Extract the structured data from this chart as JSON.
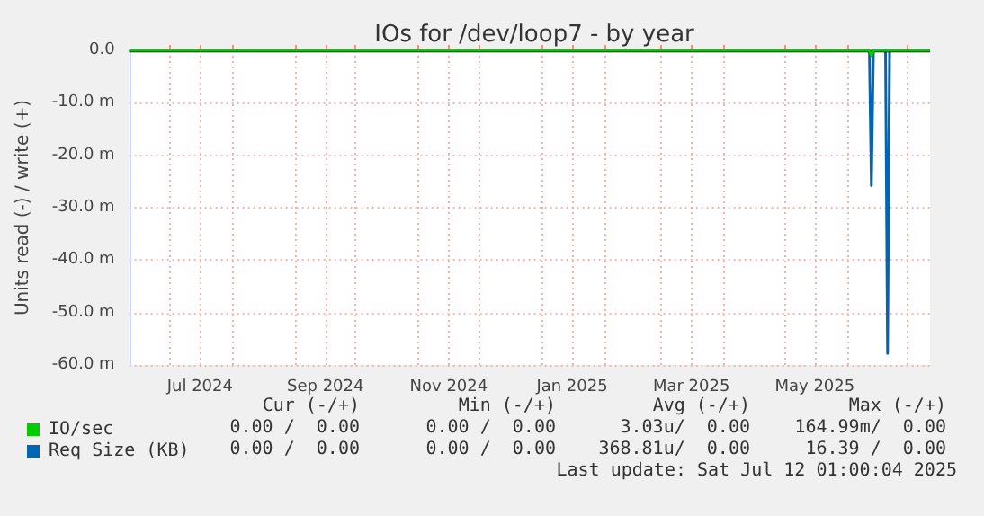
{
  "chart_data": {
    "type": "line",
    "title": "IOs for /dev/loop7 - by year",
    "ylabel": "Units read (-) / write (+)",
    "xlim": [
      "2024-06-11",
      "2025-07-12"
    ],
    "xticks": [
      {
        "value": "2024-07-01",
        "label": null
      },
      {
        "value": "2024-07-16",
        "label": "Jul 2024"
      },
      {
        "value": "2024-08-01",
        "label": null
      },
      {
        "value": "2024-09-01",
        "label": null
      },
      {
        "value": "2024-09-16",
        "label": "Sep 2024"
      },
      {
        "value": "2024-10-01",
        "label": null
      },
      {
        "value": "2024-11-01",
        "label": null
      },
      {
        "value": "2024-11-16",
        "label": "Nov 2024"
      },
      {
        "value": "2024-12-01",
        "label": null
      },
      {
        "value": "2025-01-01",
        "label": null
      },
      {
        "value": "2025-01-16",
        "label": "Jan 2025"
      },
      {
        "value": "2025-02-01",
        "label": null
      },
      {
        "value": "2025-03-01",
        "label": null
      },
      {
        "value": "2025-03-16",
        "label": "Mar 2025"
      },
      {
        "value": "2025-04-01",
        "label": null
      },
      {
        "value": "2025-05-01",
        "label": null
      },
      {
        "value": "2025-05-16",
        "label": "May 2025"
      },
      {
        "value": "2025-06-01",
        "label": null
      },
      {
        "value": "2025-07-01",
        "label": null
      }
    ],
    "ylim": [
      -60,
      0
    ],
    "yticks": [
      {
        "value": 0,
        "label": "0.0"
      },
      {
        "value": -10,
        "label": "-10.0 m"
      },
      {
        "value": -20,
        "label": "-20.0 m"
      },
      {
        "value": -30,
        "label": "-30.0 m"
      },
      {
        "value": -40,
        "label": "-40.0 m"
      },
      {
        "value": -50,
        "label": "-50.0 m"
      },
      {
        "value": -60,
        "label": "-60.0 m"
      }
    ],
    "grid": true,
    "legend": "bottom left",
    "marker": "none",
    "ref_lines": [
      {
        "axis": "y",
        "value": 0,
        "color": "#000000"
      }
    ],
    "series": [
      {
        "name": "IO/sec",
        "color": "#00cc00",
        "x": [
          "2024-06-11",
          "2025-06-12",
          "2025-06-13",
          "2025-06-14",
          "2025-07-12"
        ],
        "values": [
          0,
          0,
          -1,
          0,
          0
        ]
      },
      {
        "name": "Req Size (KB)",
        "color": "#0066b3",
        "x": [
          "2025-06-12",
          "2025-06-13",
          "2025-06-14",
          "2025-06-20",
          "2025-06-21",
          "2025-06-22"
        ],
        "values": [
          0,
          -25.8,
          0,
          0,
          -57.8,
          0
        ]
      }
    ],
    "annotations": [
      "Cur (-/+)",
      "Min (-/+)",
      "Avg (-/+)",
      "Max (-/+)",
      "0.00 /  0.00",
      "0.00 /  0.00",
      "3.03u/  0.00",
      "164.99m/  0.00",
      "0.00 /  0.00",
      "0.00 /  0.00",
      "368.81u/  0.00",
      "16.39 /  0.00",
      "Last update: Sat Jul 12 01:00:04 2025"
    ]
  }
}
